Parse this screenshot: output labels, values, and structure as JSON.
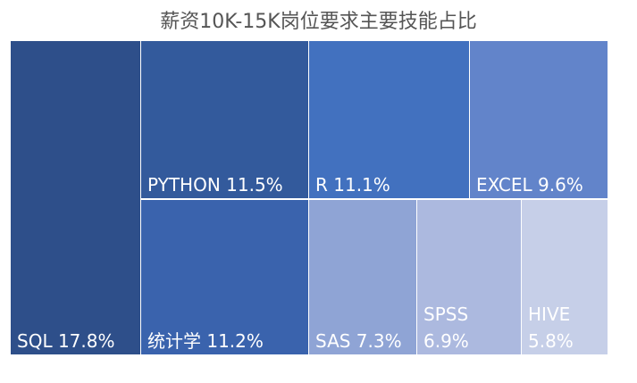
{
  "chart_data": {
    "type": "treemap",
    "title": "薪资10K-15K岗位要求主要技能占比",
    "items": [
      {
        "name": "SQL",
        "value": 17.8,
        "label": "SQL 17.8%",
        "color": "#2e4f8a"
      },
      {
        "name": "PYTHON",
        "value": 11.5,
        "label": "PYTHON 11.5%",
        "color": "#335a9c"
      },
      {
        "name": "统计学",
        "value": 11.2,
        "label": "统计学 11.2%",
        "color": "#3a63ad"
      },
      {
        "name": "R",
        "value": 11.1,
        "label": "R 11.1%",
        "color": "#4271bf"
      },
      {
        "name": "EXCEL",
        "value": 9.6,
        "label": "EXCEL 9.6%",
        "color": "#6284ca"
      },
      {
        "name": "SAS",
        "value": 7.3,
        "label": "SAS 7.3%",
        "color": "#8fa4d5"
      },
      {
        "name": "SPSS",
        "value": 6.9,
        "label_line1": "SPSS",
        "label_line2": "6.9%",
        "color": "#acb9df"
      },
      {
        "name": "HIVE",
        "value": 5.8,
        "label_line1": "HIVE",
        "label_line2": "5.8%",
        "color": "#c6cfe8"
      }
    ]
  }
}
